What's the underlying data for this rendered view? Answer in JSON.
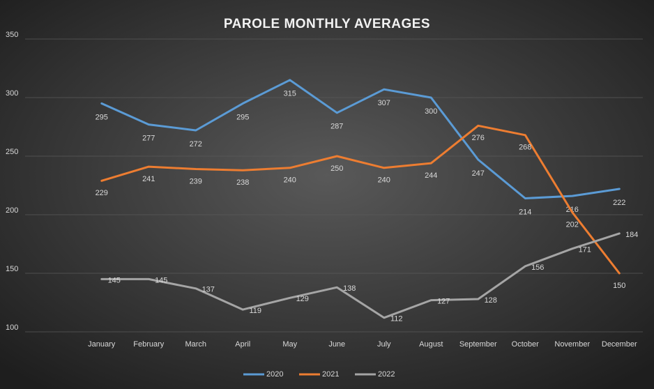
{
  "chart_data": {
    "type": "line",
    "title": "PAROLE MONTHLY AVERAGES",
    "categories": [
      "January",
      "February",
      "March",
      "April",
      "May",
      "June",
      "July",
      "August",
      "September",
      "October",
      "November",
      "December"
    ],
    "series": [
      {
        "name": "2020",
        "color": "#5b9bd5",
        "values": [
          295,
          277,
          272,
          295,
          315,
          287,
          307,
          300,
          247,
          214,
          216,
          222
        ]
      },
      {
        "name": "2021",
        "color": "#ed7d31",
        "values": [
          229,
          241,
          239,
          238,
          240,
          250,
          240,
          244,
          276,
          268,
          202,
          150
        ]
      },
      {
        "name": "2022",
        "color": "#a5a5a5",
        "values": [
          145,
          145,
          137,
          119,
          129,
          138,
          112,
          127,
          128,
          156,
          171,
          184
        ]
      }
    ],
    "ylim": [
      100,
      350
    ],
    "yticks": [
      100,
      150,
      200,
      250,
      300,
      350
    ],
    "grid": true,
    "legend": "bottom"
  }
}
